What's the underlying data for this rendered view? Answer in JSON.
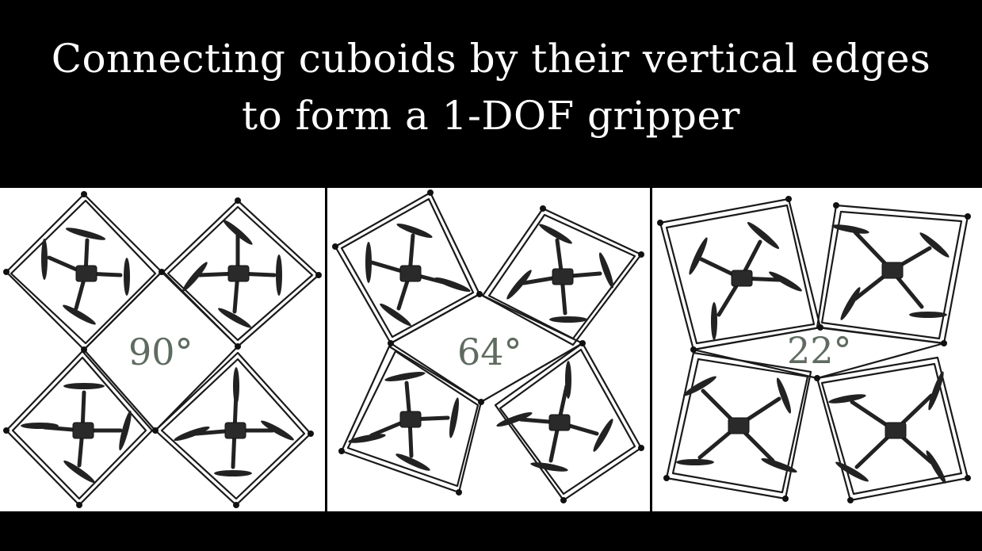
{
  "title": {
    "line1": "Connecting cuboids by their vertical edges",
    "line2": "to form a 1-DOF gripper"
  },
  "panels": [
    {
      "angle_label": "90°"
    },
    {
      "angle_label": "64°"
    },
    {
      "angle_label": "22°"
    }
  ],
  "colors": {
    "background": "#000000",
    "title_text": "#ffffff",
    "panel_background": "#ffffff",
    "angle_text": "#5f6b60",
    "frame": "#1a1a1a"
  }
}
